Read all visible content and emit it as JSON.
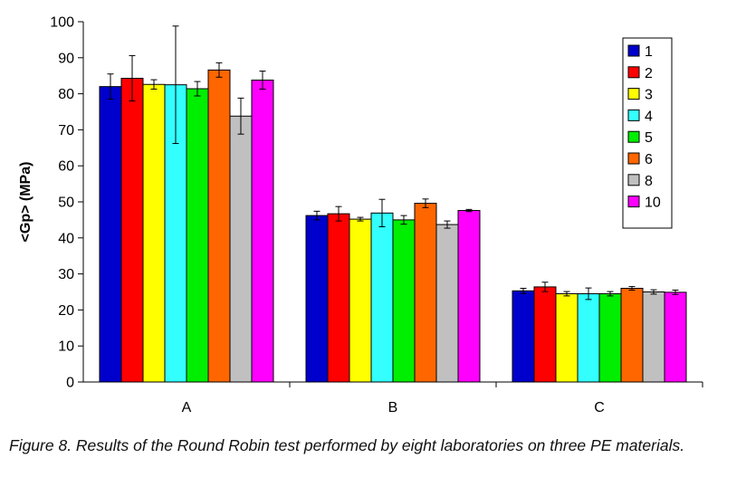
{
  "chart_data": {
    "type": "bar",
    "categories": [
      "A",
      "B",
      "C"
    ],
    "ylabel": "<Gp> (MPa)",
    "xlabel": "",
    "ylim": [
      0,
      100
    ],
    "yticks": [
      "0",
      "10",
      "20",
      "30",
      "40",
      "50",
      "60",
      "70",
      "80",
      "90",
      "100"
    ],
    "grid": false,
    "legend_position": "top-right",
    "series": [
      {
        "name": "1",
        "color": "#0000cc",
        "values": [
          82.0,
          46.2,
          25.3
        ],
        "errors": [
          3.5,
          1.2,
          0.7
        ]
      },
      {
        "name": "2",
        "color": "#ff0000",
        "values": [
          84.3,
          46.7,
          26.4
        ],
        "errors": [
          6.3,
          2.0,
          1.3
        ]
      },
      {
        "name": "3",
        "color": "#ffff00",
        "values": [
          82.6,
          45.2,
          24.5
        ],
        "errors": [
          1.3,
          0.5,
          0.6
        ]
      },
      {
        "name": "4",
        "color": "#33ffff",
        "values": [
          82.5,
          46.9,
          24.5
        ],
        "errors": [
          16.3,
          3.8,
          1.6
        ]
      },
      {
        "name": "5",
        "color": "#00ee00",
        "values": [
          81.4,
          45.0,
          24.5
        ],
        "errors": [
          2.0,
          1.2,
          0.6
        ]
      },
      {
        "name": "6",
        "color": "#ff6600",
        "values": [
          86.6,
          49.6,
          26.0
        ],
        "errors": [
          2.0,
          1.2,
          0.5
        ]
      },
      {
        "name": "8",
        "color": "#c0c0c0",
        "values": [
          73.8,
          43.7,
          25.0
        ],
        "errors": [
          5.0,
          1.0,
          0.6
        ]
      },
      {
        "name": "10",
        "color": "#ff00ff",
        "values": [
          83.8,
          47.6,
          24.9
        ],
        "errors": [
          2.5,
          0.3,
          0.6
        ]
      }
    ]
  },
  "caption": "Figure 8. Results of the Round Robin test performed by eight laboratories on three PE materials."
}
